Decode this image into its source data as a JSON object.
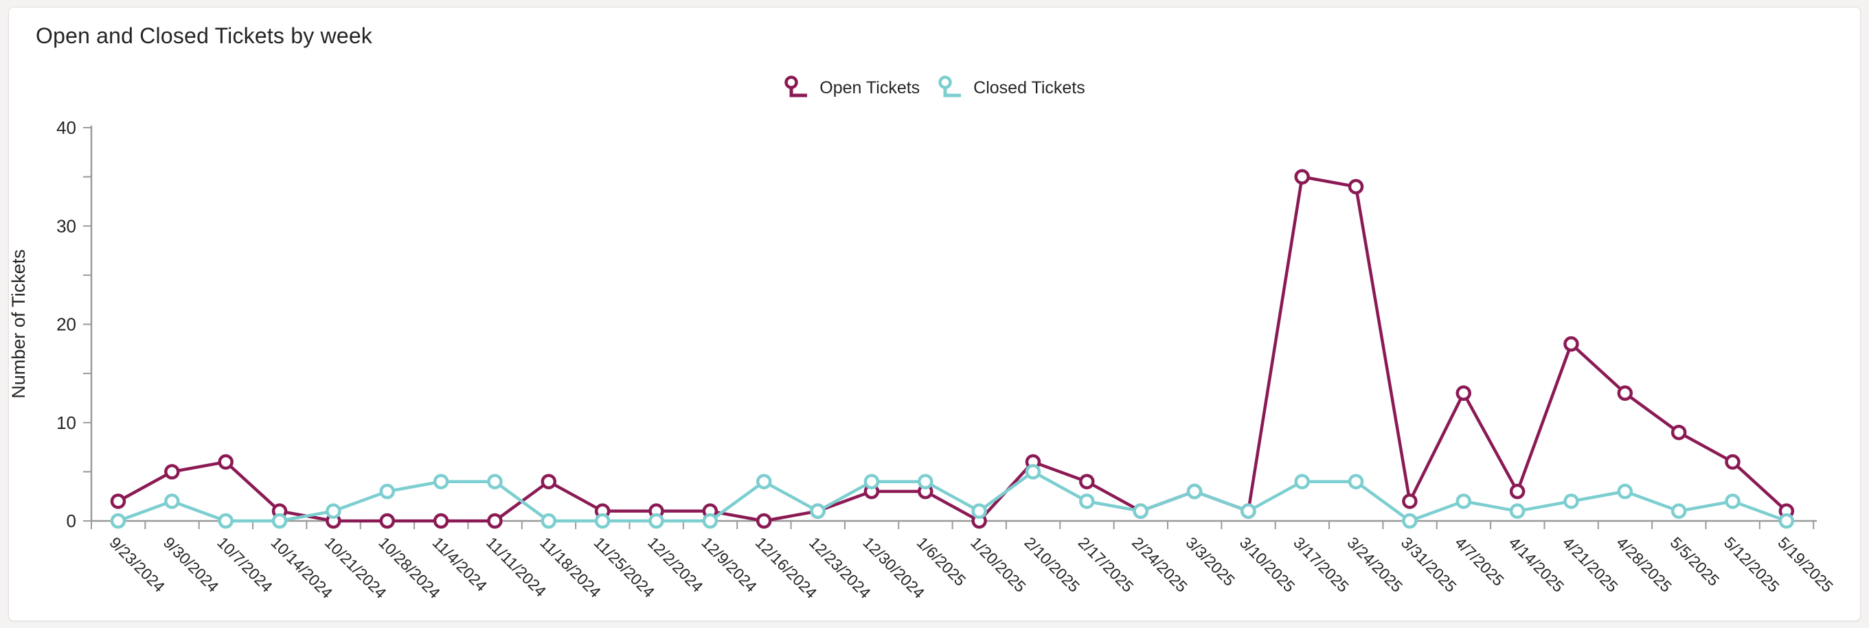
{
  "card": {
    "background": "#ffffff"
  },
  "chart_data": {
    "type": "line",
    "title": "Open and Closed Tickets by week",
    "xlabel": "",
    "ylabel": "Number of Tickets",
    "ylim": [
      0,
      40
    ],
    "yticks": [
      0,
      10,
      20,
      30,
      40
    ],
    "y_minor_step": 5,
    "grid": false,
    "legend_position": "top-center",
    "categories": [
      "9/23/2024",
      "9/30/2024",
      "10/7/2024",
      "10/14/2024",
      "10/21/2024",
      "10/28/2024",
      "11/4/2024",
      "11/11/2024",
      "11/18/2024",
      "11/25/2024",
      "12/2/2024",
      "12/9/2024",
      "12/16/2024",
      "12/23/2024",
      "12/30/2024",
      "1/6/2025",
      "1/20/2025",
      "2/10/2025",
      "2/17/2025",
      "2/24/2025",
      "3/3/2025",
      "3/10/2025",
      "3/17/2025",
      "3/24/2025",
      "3/31/2025",
      "4/7/2025",
      "4/14/2025",
      "4/21/2025",
      "4/28/2025",
      "5/5/2025",
      "5/12/2025",
      "5/19/2025"
    ],
    "series": [
      {
        "name": "Open Tickets",
        "color": "#8B1A54",
        "values": [
          2,
          5,
          6,
          1,
          0,
          0,
          0,
          0,
          4,
          1,
          1,
          1,
          0,
          1,
          3,
          3,
          0,
          6,
          4,
          1,
          3,
          1,
          35,
          34,
          2,
          13,
          3,
          18,
          13,
          9,
          6,
          1
        ]
      },
      {
        "name": "Closed Tickets",
        "color": "#7CCED0",
        "values": [
          0,
          2,
          0,
          0,
          1,
          3,
          4,
          4,
          0,
          0,
          0,
          0,
          4,
          1,
          4,
          4,
          1,
          5,
          2,
          1,
          3,
          1,
          4,
          4,
          0,
          2,
          1,
          2,
          3,
          1,
          2,
          0
        ]
      }
    ],
    "axis_color": "#9a9a9a",
    "tick_label_color": "#252423"
  }
}
